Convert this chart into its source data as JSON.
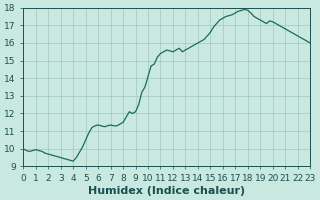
{
  "title": "",
  "xlabel": "Humidex (Indice chaleur)",
  "ylabel": "",
  "xlim": [
    0,
    23
  ],
  "ylim": [
    9,
    18
  ],
  "yticks": [
    9,
    10,
    11,
    12,
    13,
    14,
    15,
    16,
    17,
    18
  ],
  "xticks": [
    0,
    1,
    2,
    3,
    4,
    5,
    6,
    7,
    8,
    9,
    10,
    11,
    12,
    13,
    14,
    15,
    16,
    17,
    18,
    19,
    20,
    21,
    22,
    23
  ],
  "x": [
    0,
    0.25,
    0.5,
    0.75,
    1.0,
    1.25,
    1.5,
    1.75,
    2.0,
    2.25,
    2.5,
    2.75,
    3.0,
    3.25,
    3.5,
    3.75,
    4.0,
    4.25,
    4.5,
    4.75,
    5.0,
    5.25,
    5.5,
    5.75,
    6.0,
    6.25,
    6.5,
    6.75,
    7.0,
    7.25,
    7.5,
    7.75,
    8.0,
    8.25,
    8.5,
    8.75,
    9.0,
    9.25,
    9.5,
    9.75,
    10.0,
    10.25,
    10.5,
    10.75,
    11.0,
    11.25,
    11.5,
    11.75,
    12.0,
    12.25,
    12.5,
    12.75,
    13.0,
    13.25,
    13.5,
    13.75,
    14.0,
    14.25,
    14.5,
    14.75,
    15.0,
    15.25,
    15.5,
    15.75,
    16.0,
    16.25,
    16.5,
    16.75,
    17.0,
    17.25,
    17.5,
    17.75,
    18.0,
    18.25,
    18.5,
    18.75,
    19.0,
    19.25,
    19.5,
    19.75,
    20.0,
    20.25,
    20.5,
    20.75,
    21.0,
    21.25,
    21.5,
    21.75,
    22.0,
    22.25,
    22.5,
    22.75,
    23.0
  ],
  "y": [
    10.0,
    9.9,
    9.85,
    9.9,
    9.95,
    9.9,
    9.85,
    9.75,
    9.7,
    9.65,
    9.6,
    9.55,
    9.5,
    9.45,
    9.4,
    9.35,
    9.3,
    9.5,
    9.8,
    10.1,
    10.5,
    10.9,
    11.2,
    11.3,
    11.35,
    11.3,
    11.25,
    11.3,
    11.35,
    11.3,
    11.3,
    11.4,
    11.5,
    11.8,
    12.1,
    12.0,
    12.1,
    12.5,
    13.2,
    13.5,
    14.1,
    14.7,
    14.8,
    15.2,
    15.4,
    15.5,
    15.6,
    15.55,
    15.5,
    15.6,
    15.7,
    15.5,
    15.6,
    15.7,
    15.8,
    15.9,
    16.0,
    16.1,
    16.2,
    16.4,
    16.6,
    16.9,
    17.1,
    17.3,
    17.4,
    17.5,
    17.55,
    17.6,
    17.7,
    17.8,
    17.85,
    17.9,
    17.85,
    17.7,
    17.5,
    17.4,
    17.3,
    17.2,
    17.1,
    17.25,
    17.2,
    17.1,
    17.0,
    16.9,
    16.8,
    16.7,
    16.6,
    16.5,
    16.4,
    16.3,
    16.2,
    16.1,
    16.0
  ],
  "line_color": "#1a6b5a",
  "bg_color": "#c8e8e0",
  "grid_color": "#a0c8c0",
  "tick_color": "#1a5050",
  "xlabel_fontsize": 8,
  "tick_fontsize": 6.5
}
